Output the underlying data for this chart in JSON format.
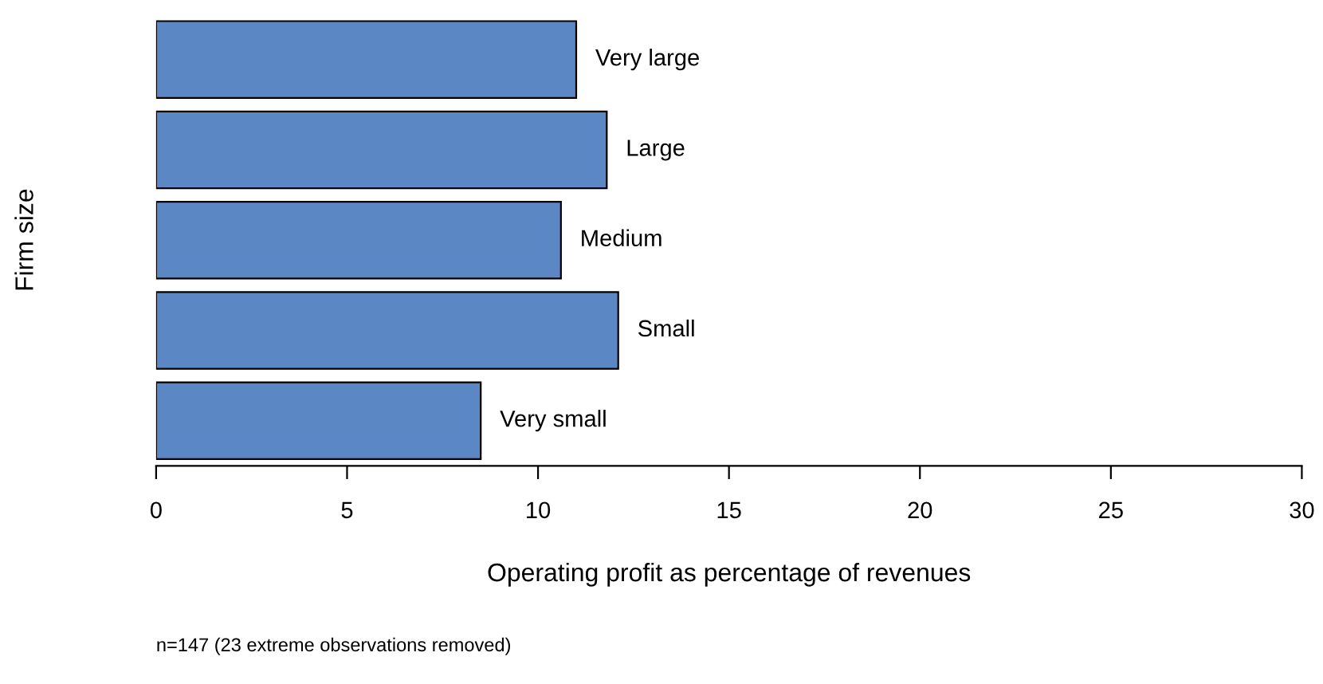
{
  "chart_data": {
    "type": "bar",
    "orientation": "horizontal",
    "categories": [
      "Very large",
      "Large",
      "Medium",
      "Small",
      "Very small"
    ],
    "values": [
      11.0,
      11.8,
      10.6,
      12.1,
      8.5
    ],
    "color": "#5b87c5",
    "xlim": [
      0,
      30
    ],
    "xticks": [
      0,
      5,
      10,
      15,
      20,
      25,
      30
    ],
    "xlabel": "Operating profit as percentage of revenues",
    "ylabel": "Firm size",
    "annotations": [
      "n=147 (23 extreme observations removed)"
    ],
    "grid": false,
    "legend": false
  }
}
